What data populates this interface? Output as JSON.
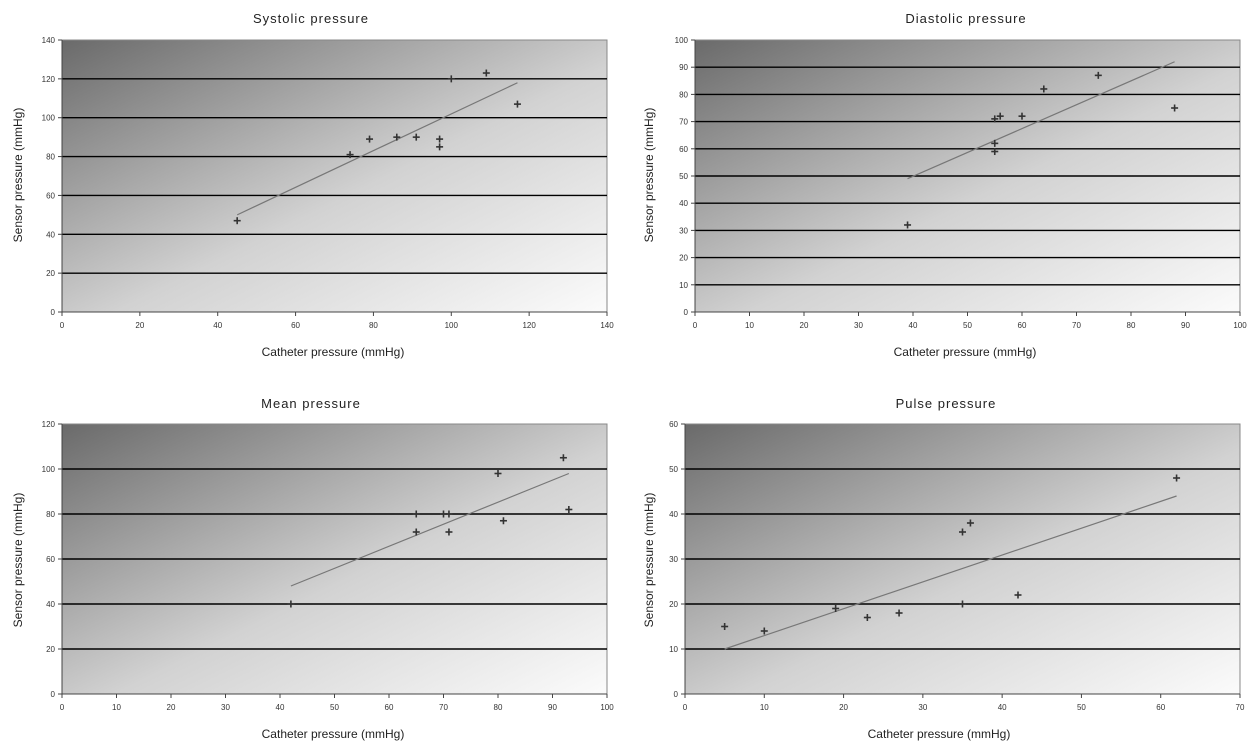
{
  "chart_data": [
    {
      "type": "scatter",
      "title": "Systolic pressure",
      "xlabel": "Catheter pressure (mmHg)",
      "ylabel": "Sensor pressure (mmHg)",
      "xlim": [
        0,
        140
      ],
      "ylim": [
        0,
        140
      ],
      "xticks": [
        0,
        20,
        40,
        60,
        80,
        100,
        120,
        140
      ],
      "yticks": [
        0,
        20,
        40,
        60,
        80,
        100,
        120,
        140
      ],
      "grid": "horizontal",
      "points": [
        {
          "x": 45,
          "y": 47
        },
        {
          "x": 74,
          "y": 81
        },
        {
          "x": 79,
          "y": 89
        },
        {
          "x": 86,
          "y": 90
        },
        {
          "x": 91,
          "y": 90
        },
        {
          "x": 97,
          "y": 89
        },
        {
          "x": 97,
          "y": 85
        },
        {
          "x": 100,
          "y": 120
        },
        {
          "x": 109,
          "y": 123
        },
        {
          "x": 117,
          "y": 107
        }
      ],
      "trendline": {
        "x": [
          45,
          117
        ],
        "y": [
          50,
          118
        ]
      }
    },
    {
      "type": "scatter",
      "title": "Diastolic pressure",
      "xlabel": "Catheter pressure (mmHg)",
      "ylabel": "Sensor pressure (mmHg)",
      "xlim": [
        0,
        100
      ],
      "ylim": [
        0,
        100
      ],
      "xticks": [
        0,
        10,
        20,
        30,
        40,
        50,
        60,
        70,
        80,
        90,
        100
      ],
      "yticks": [
        0,
        10,
        20,
        30,
        40,
        50,
        60,
        70,
        80,
        90,
        100
      ],
      "grid": "horizontal",
      "points": [
        {
          "x": 39,
          "y": 32
        },
        {
          "x": 55,
          "y": 59
        },
        {
          "x": 55,
          "y": 62
        },
        {
          "x": 55,
          "y": 71
        },
        {
          "x": 56,
          "y": 72
        },
        {
          "x": 60,
          "y": 72
        },
        {
          "x": 64,
          "y": 82
        },
        {
          "x": 74,
          "y": 87
        },
        {
          "x": 88,
          "y": 75
        }
      ],
      "trendline": {
        "x": [
          39,
          88
        ],
        "y": [
          49,
          92
        ]
      }
    },
    {
      "type": "scatter",
      "title": "Mean pressure",
      "xlabel": "Catheter pressure (mmHg)",
      "ylabel": "Sensor pressure (mmHg)",
      "xlim": [
        0,
        100
      ],
      "ylim": [
        0,
        120
      ],
      "xticks": [
        0,
        10,
        20,
        30,
        40,
        50,
        60,
        70,
        80,
        90,
        100
      ],
      "yticks": [
        0,
        20,
        40,
        60,
        80,
        100,
        120
      ],
      "grid": "horizontal",
      "points": [
        {
          "x": 42,
          "y": 40
        },
        {
          "x": 65,
          "y": 72
        },
        {
          "x": 65,
          "y": 80
        },
        {
          "x": 70,
          "y": 80
        },
        {
          "x": 71,
          "y": 80
        },
        {
          "x": 71,
          "y": 72
        },
        {
          "x": 80,
          "y": 98
        },
        {
          "x": 81,
          "y": 77
        },
        {
          "x": 92,
          "y": 105
        },
        {
          "x": 93,
          "y": 82
        }
      ],
      "trendline": {
        "x": [
          42,
          93
        ],
        "y": [
          48,
          98
        ]
      }
    },
    {
      "type": "scatter",
      "title": "Pulse pressure",
      "xlabel": "Catheter pressure (mmHg)",
      "ylabel": "Sensor pressure (mmHg)",
      "xlim": [
        0,
        70
      ],
      "ylim": [
        0,
        60
      ],
      "xticks": [
        0,
        10,
        20,
        30,
        40,
        50,
        60,
        70
      ],
      "yticks": [
        0,
        10,
        20,
        30,
        40,
        50,
        60
      ],
      "grid": "horizontal",
      "points": [
        {
          "x": 5,
          "y": 15
        },
        {
          "x": 10,
          "y": 14
        },
        {
          "x": 19,
          "y": 19
        },
        {
          "x": 23,
          "y": 17
        },
        {
          "x": 27,
          "y": 18
        },
        {
          "x": 35,
          "y": 36
        },
        {
          "x": 35,
          "y": 20
        },
        {
          "x": 36,
          "y": 38
        },
        {
          "x": 42,
          "y": 22
        },
        {
          "x": 62,
          "y": 48
        }
      ],
      "trendline": {
        "x": [
          5,
          62
        ],
        "y": [
          10,
          44
        ]
      }
    }
  ]
}
